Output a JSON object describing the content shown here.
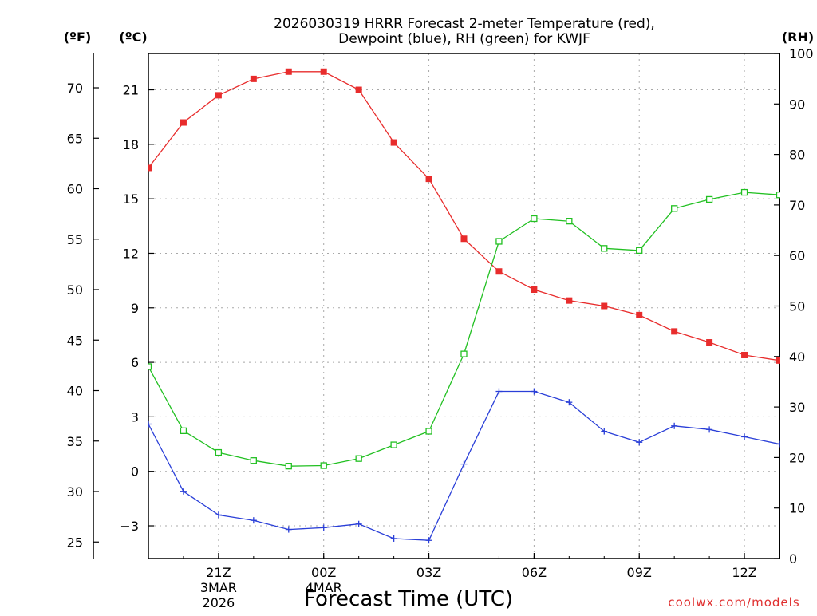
{
  "chart_data": {
    "type": "line",
    "title_line1": "2026030319 HRRR Forecast 2-meter Temperature (red),",
    "title_line2": "Dewpoint (blue), RH (green) for KWJF",
    "xlabel": "Forecast Time (UTC)",
    "credit": "coolwx.com/models",
    "units": {
      "fahrenheit": "(ºF)",
      "celsius": "(ºC)",
      "rh": "(RH)"
    },
    "x_hours_since_19z": [
      0,
      1,
      2,
      3,
      4,
      5,
      6,
      7,
      8,
      9,
      10,
      11,
      12,
      13,
      14,
      15,
      16,
      17,
      18
    ],
    "x_range": [
      0,
      18
    ],
    "x_ticks": [
      {
        "hour": 2,
        "label": "21Z",
        "sub1": "3MAR",
        "sub2": "2026"
      },
      {
        "hour": 5,
        "label": "00Z",
        "sub1": "4MAR",
        "sub2": ""
      },
      {
        "hour": 8,
        "label": "03Z",
        "sub1": "",
        "sub2": ""
      },
      {
        "hour": 11,
        "label": "06Z",
        "sub1": "",
        "sub2": ""
      },
      {
        "hour": 14,
        "label": "09Z",
        "sub1": "",
        "sub2": ""
      },
      {
        "hour": 17,
        "label": "12Z",
        "sub1": "",
        "sub2": ""
      }
    ],
    "y_celsius": {
      "range": [
        -4.8,
        23.0
      ],
      "ticks": [
        -3,
        0,
        3,
        6,
        9,
        12,
        15,
        18,
        21
      ],
      "tick_labels": [
        "−3",
        "0",
        "3",
        "6",
        "9",
        "12",
        "15",
        "18",
        "21"
      ]
    },
    "y_fahrenheit": {
      "ticks": [
        25,
        30,
        35,
        40,
        45,
        50,
        55,
        60,
        65,
        70
      ],
      "tick_labels": [
        "25",
        "30",
        "35",
        "40",
        "45",
        "50",
        "55",
        "60",
        "65",
        "70"
      ]
    },
    "y_rh": {
      "range": [
        0,
        100
      ],
      "ticks": [
        0,
        10,
        20,
        30,
        40,
        50,
        60,
        70,
        80,
        90,
        100
      ],
      "tick_labels": [
        "0",
        "10",
        "20",
        "30",
        "40",
        "50",
        "60",
        "70",
        "80",
        "90",
        "100"
      ]
    },
    "series": [
      {
        "name": "Temperature",
        "axis": "celsius",
        "color": "#e82c2c",
        "marker": "filled-square",
        "values": [
          16.7,
          19.2,
          20.7,
          21.6,
          22.0,
          22.0,
          21.0,
          18.1,
          16.1,
          12.8,
          11.0,
          10.0,
          9.4,
          9.1,
          8.6,
          7.7,
          7.1,
          6.4,
          6.1
        ]
      },
      {
        "name": "Dewpoint",
        "axis": "celsius",
        "color": "#2a3fd8",
        "marker": "plus",
        "values": [
          2.6,
          -1.1,
          -2.4,
          -2.7,
          -3.2,
          -3.1,
          -2.9,
          -3.7,
          -3.8,
          0.4,
          4.4,
          4.4,
          3.8,
          2.2,
          1.6,
          2.5,
          2.3,
          1.9,
          1.5
        ]
      },
      {
        "name": "RH",
        "axis": "rh",
        "color": "#22c022",
        "marker": "open-square",
        "values": [
          38,
          25.3,
          21,
          19.4,
          18.3,
          18.4,
          19.8,
          22.5,
          25.2,
          40.5,
          62.8,
          67.3,
          66.8,
          61.4,
          61.0,
          69.3,
          71.1,
          72.5,
          72.0
        ]
      }
    ]
  }
}
